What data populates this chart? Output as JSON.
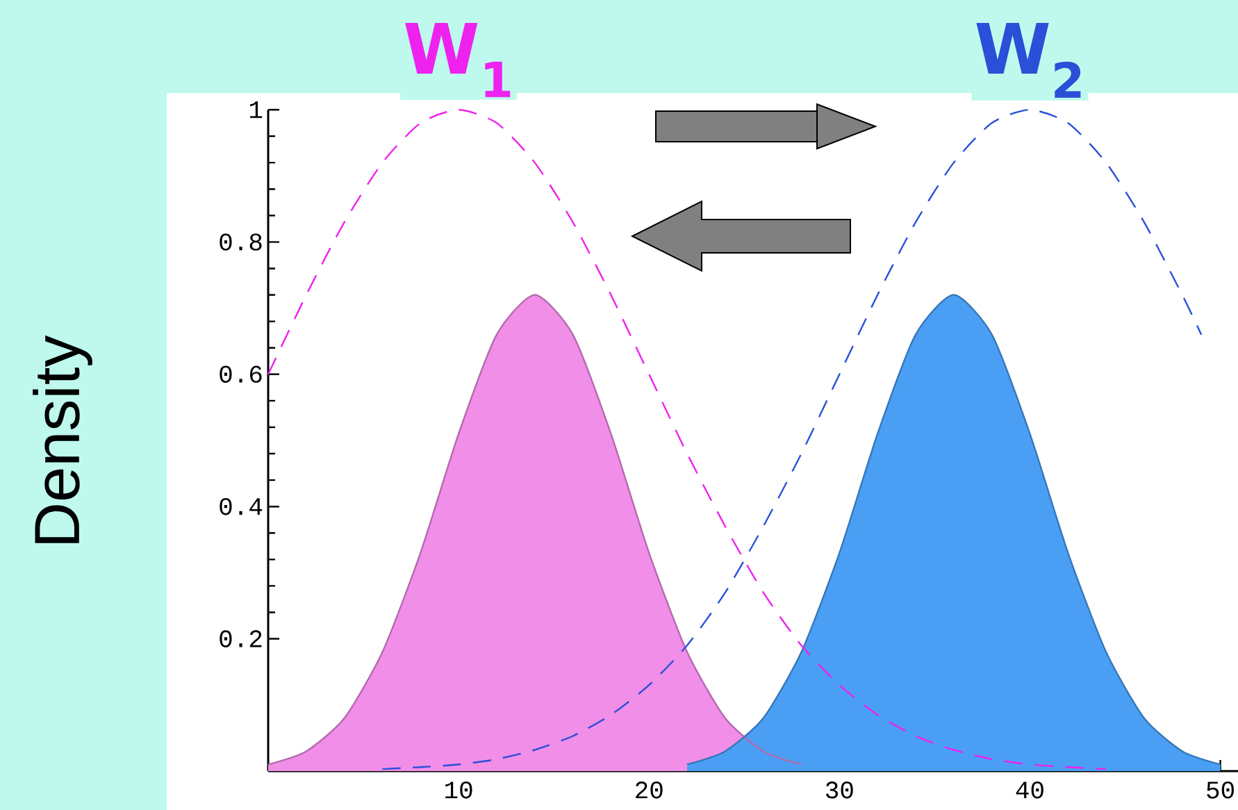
{
  "chart_data": {
    "type": "area",
    "ylabel": "Density",
    "legend": "top",
    "xlim": [
      0,
      51
    ],
    "ylim": [
      0,
      1
    ],
    "xticks": [
      10,
      20,
      30,
      40,
      50
    ],
    "yticks": [
      0.2,
      0.4,
      0.6,
      0.8,
      1
    ],
    "series": [
      {
        "color": "#f08ee8",
        "x": [
          0,
          2,
          4,
          6,
          8,
          10,
          12,
          14,
          16,
          18,
          20,
          22,
          24,
          26,
          28
        ],
        "values": [
          0.01,
          0.03,
          0.08,
          0.18,
          0.33,
          0.51,
          0.66,
          0.72,
          0.66,
          0.51,
          0.33,
          0.18,
          0.08,
          0.03,
          0.01
        ]
      },
      {
        "color": "#4a9ff5",
        "x": [
          22,
          24,
          26,
          28,
          30,
          32,
          34,
          36,
          38,
          40,
          42,
          44,
          46,
          48,
          50
        ],
        "values": [
          0.01,
          0.03,
          0.08,
          0.18,
          0.33,
          0.51,
          0.66,
          0.72,
          0.66,
          0.51,
          0.33,
          0.18,
          0.08,
          0.03,
          0.01
        ]
      },
      {
        "type": "line",
        "name": "W$_{1}$",
        "color": "#ee22ee",
        "line_style": "dashed",
        "x": [
          0,
          2,
          4,
          6,
          8,
          10,
          12,
          14,
          16,
          18,
          20,
          22,
          24,
          26,
          28,
          30,
          32,
          34,
          36,
          38,
          40,
          42,
          44
        ],
        "values": [
          0.6,
          0.72,
          0.83,
          0.92,
          0.98,
          1,
          0.98,
          0.92,
          0.83,
          0.72,
          0.6,
          0.48,
          0.37,
          0.27,
          0.19,
          0.13,
          0.085,
          0.053,
          0.032,
          0.018,
          0.01,
          0.006,
          0.003
        ]
      },
      {
        "type": "line",
        "name": "W$_{2}$",
        "color": "#2a4fd8",
        "line_style": "dashed",
        "x": [
          6,
          8,
          10,
          12,
          14,
          16,
          18,
          20,
          22,
          24,
          26,
          28,
          30,
          32,
          34,
          36,
          38,
          40,
          42,
          44,
          46,
          48,
          49
        ],
        "values": [
          0.003,
          0.006,
          0.01,
          0.018,
          0.032,
          0.053,
          0.085,
          0.13,
          0.19,
          0.27,
          0.37,
          0.48,
          0.6,
          0.72,
          0.83,
          0.92,
          0.98,
          1,
          0.98,
          0.92,
          0.83,
          0.72,
          0.66
        ]
      }
    ]
  }
}
